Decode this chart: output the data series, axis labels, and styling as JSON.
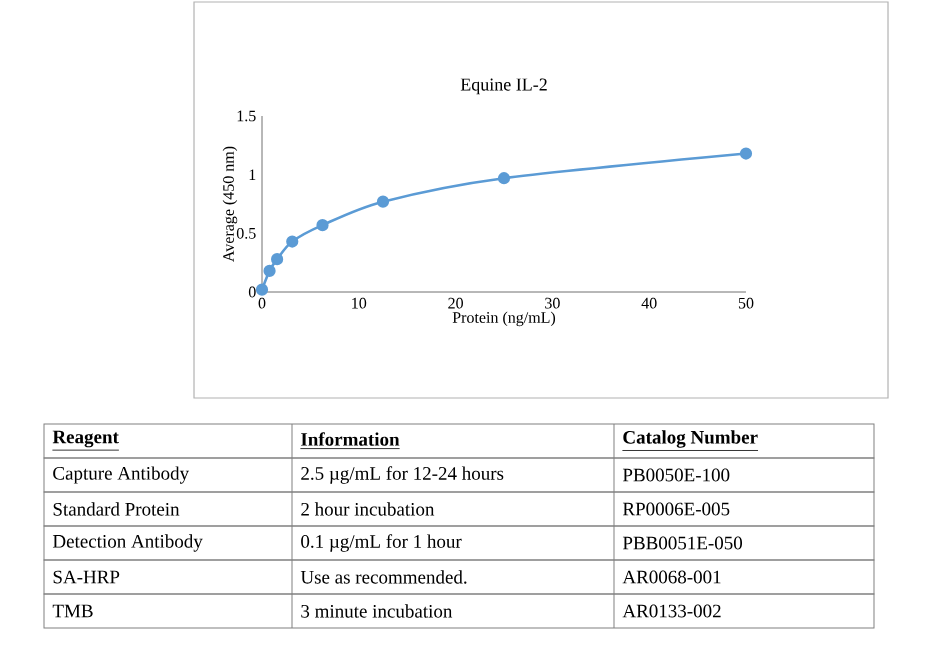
{
  "chart_data": {
    "type": "line",
    "title": "Equine IL-2",
    "xlabel": "Protein (ng/mL)",
    "ylabel": "Average (450 nm)",
    "x": [
      0,
      0.78,
      1.56,
      3.125,
      6.25,
      12.5,
      25,
      50
    ],
    "series": [
      {
        "color": "#5b9bd5",
        "values": [
          0.02,
          0.18,
          0.28,
          0.43,
          0.57,
          0.77,
          0.97,
          1.18
        ]
      }
    ],
    "xlim": [
      0,
      50
    ],
    "ylim": [
      0,
      1.5
    ],
    "xticks": [
      0,
      10,
      20,
      30,
      40,
      50
    ],
    "yticks": [
      0,
      0.5,
      1,
      1.5
    ],
    "grid": false,
    "marker": "circle",
    "line_style": "solid",
    "annotations": [
      "Reagent",
      "Information",
      "Catalog Number",
      "Capture Antibody",
      "2.5 µg/mL for 12-24 hours",
      "PB0050E-100",
      "Standard Protein",
      "2 hour incubation",
      "RP0006E-005",
      "Detection Antibody",
      "0.1 µg/mL for 1 hour",
      "PBB0051E-050",
      "SA-HRP",
      "Use as recommended.",
      "AR0068-001",
      "TMB",
      "3 minute incubation",
      "AR0133-002"
    ]
  }
}
